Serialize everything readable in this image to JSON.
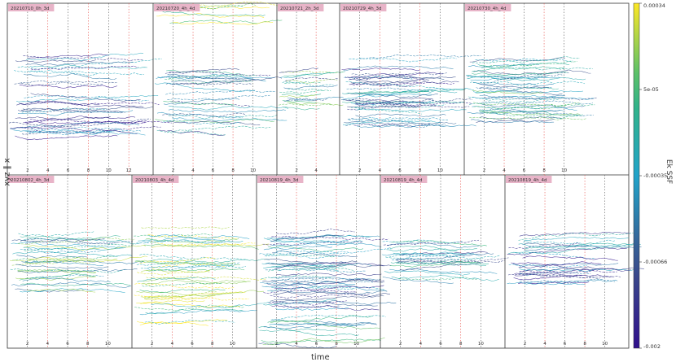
{
  "chart_data": {
    "type": "line",
    "title": "",
    "xlabel": "time",
    "ylabel": "xyz ‖ x",
    "colorbar": {
      "label": "Ek SSF",
      "ticks": [
        "0.00034",
        "5e-05",
        "-0.00035",
        "-0.00066",
        "-0.002"
      ],
      "colors": [
        "#fde725",
        "#35b779",
        "#21a3c9",
        "#3b528b",
        "#30108c"
      ]
    },
    "colors": {
      "frame": "#333333",
      "grid": "#000000",
      "marker_red": "#e6504a",
      "marker_dark": "#555555",
      "label_bg": "#e8b4c8"
    },
    "panels": [
      {
        "label": "20210710_0h_3d",
        "row": 0,
        "xticks": [
          "2",
          "4",
          "6",
          "8",
          "10",
          "12"
        ],
        "series_density": 40,
        "band": [
          0.3,
          0.78
        ],
        "bias": 0.25
      },
      {
        "label": "20210720_4h_4d",
        "row": 0,
        "xticks": [
          "2",
          "4",
          "6",
          "8",
          "10"
        ],
        "series_density": 30,
        "band": [
          0.38,
          0.75
        ],
        "bias": 0.45,
        "top_band": [
          0.0,
          0.12
        ]
      },
      {
        "label": "20210721_2h_3d",
        "row": 0,
        "xticks": [
          "2",
          "4"
        ],
        "series_density": 20,
        "band": [
          0.38,
          0.62
        ],
        "bias": 0.55
      },
      {
        "label": "20210729_4h_3d",
        "row": 0,
        "xticks": [
          "2",
          "4",
          "6",
          "8",
          "10"
        ],
        "series_density": 45,
        "band": [
          0.32,
          0.72
        ],
        "bias": 0.35
      },
      {
        "label": "20210730_4h_4d",
        "row": 0,
        "xticks": [
          "2",
          "4",
          "6",
          "8",
          "10"
        ],
        "series_density": 45,
        "band": [
          0.32,
          0.7
        ],
        "bias": 0.5
      },
      {
        "label": "20210802_4h_3d",
        "row": 1,
        "xticks": [
          "2",
          "4",
          "6",
          "8",
          "10"
        ],
        "series_density": 35,
        "band": [
          0.33,
          0.68
        ],
        "bias": 0.6
      },
      {
        "label": "20210803_4h_4d",
        "row": 1,
        "xticks": [
          "2",
          "4",
          "6",
          "8",
          "10"
        ],
        "series_density": 45,
        "band": [
          0.3,
          0.88
        ],
        "bias": 0.8
      },
      {
        "label": "20210819_4h_3d",
        "row": 1,
        "xticks": [
          "2",
          "4",
          "6",
          "8",
          "10"
        ],
        "series_density": 50,
        "band": [
          0.33,
          0.78
        ],
        "bias": 0.4,
        "bottom_band": [
          0.83,
          0.98
        ]
      },
      {
        "label": "20210819_4h_4d",
        "row": 1,
        "xticks": [
          "2",
          "4",
          "6",
          "8",
          "10"
        ],
        "series_density": 25,
        "band": [
          0.38,
          0.62
        ],
        "bias": 0.45
      },
      {
        "label": "20210819_4h_4d",
        "row": 1,
        "xticks": [
          "2",
          "4",
          "6",
          "8",
          "10"
        ],
        "series_density": 30,
        "band": [
          0.35,
          0.64
        ],
        "bias": 0.3
      }
    ]
  }
}
